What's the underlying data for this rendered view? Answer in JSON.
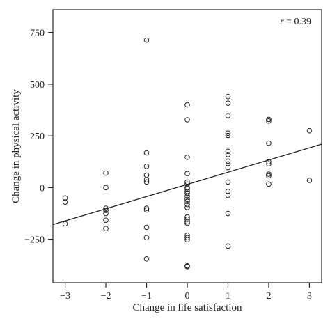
{
  "chart_data": {
    "type": "scatter",
    "xlabel": "Change in life satisfaction",
    "ylabel": "Change in physical activity",
    "xlim": [
      -3.3,
      3.3
    ],
    "ylim": [
      -460,
      860
    ],
    "xticks": [
      -3,
      -2,
      -1,
      0,
      1,
      2,
      3
    ],
    "xtick_labels": [
      "−3",
      "−2",
      "−1",
      "0",
      "1",
      "2",
      "3"
    ],
    "yticks": [
      -250,
      0,
      250,
      500,
      750
    ],
    "ytick_labels": [
      "−250",
      "0",
      "250",
      "500",
      "750"
    ],
    "annotation": {
      "prefix": "r",
      "text": " = 0.39"
    },
    "grid": false,
    "legend": "none",
    "marker": "open-circle",
    "points": [
      [
        -3,
        -50
      ],
      [
        -3,
        -70
      ],
      [
        -3,
        -175
      ],
      [
        -2,
        70
      ],
      [
        -2,
        0
      ],
      [
        -2,
        -100
      ],
      [
        -2,
        -110
      ],
      [
        -2,
        -125
      ],
      [
        -2,
        -158
      ],
      [
        -2,
        -198
      ],
      [
        -1,
        713
      ],
      [
        -1,
        168
      ],
      [
        -1,
        103
      ],
      [
        -1,
        60
      ],
      [
        -1,
        38
      ],
      [
        -1,
        27
      ],
      [
        -1,
        -100
      ],
      [
        -1,
        -108
      ],
      [
        -1,
        -192
      ],
      [
        -1,
        -242
      ],
      [
        -1,
        -345
      ],
      [
        0,
        400
      ],
      [
        0,
        328
      ],
      [
        0,
        147
      ],
      [
        0,
        68
      ],
      [
        0,
        27
      ],
      [
        0,
        17
      ],
      [
        0,
        0
      ],
      [
        0,
        -7
      ],
      [
        0,
        -18
      ],
      [
        0,
        -27
      ],
      [
        0,
        -42
      ],
      [
        0,
        -57
      ],
      [
        0,
        -67
      ],
      [
        0,
        -82
      ],
      [
        0,
        -96
      ],
      [
        0,
        -142
      ],
      [
        0,
        -153
      ],
      [
        0,
        -165
      ],
      [
        0,
        -172
      ],
      [
        0,
        -230
      ],
      [
        0,
        -242
      ],
      [
        0,
        -252
      ],
      [
        0,
        -378
      ],
      [
        0,
        -382
      ],
      [
        1,
        440
      ],
      [
        1,
        408
      ],
      [
        1,
        348
      ],
      [
        1,
        263
      ],
      [
        1,
        252
      ],
      [
        1,
        175
      ],
      [
        1,
        160
      ],
      [
        1,
        128
      ],
      [
        1,
        115
      ],
      [
        1,
        97
      ],
      [
        1,
        27
      ],
      [
        1,
        -18
      ],
      [
        1,
        -38
      ],
      [
        1,
        -125
      ],
      [
        1,
        -283
      ],
      [
        2,
        330
      ],
      [
        2,
        322
      ],
      [
        2,
        215
      ],
      [
        2,
        125
      ],
      [
        2,
        115
      ],
      [
        2,
        65
      ],
      [
        2,
        57
      ],
      [
        2,
        17
      ],
      [
        3,
        275
      ],
      [
        3,
        35
      ]
    ],
    "fit_line": {
      "x": [
        -3.3,
        3.3
      ],
      "y": [
        -179,
        210
      ]
    },
    "colors": {
      "axis": "#222222",
      "marker": "#222222",
      "line": "#222222",
      "background": "#ffffff"
    }
  }
}
